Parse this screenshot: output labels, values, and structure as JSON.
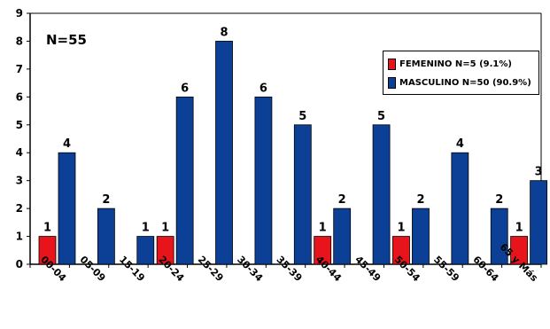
{
  "chart_data": {
    "type": "bar",
    "categories": [
      "00-04",
      "05-09",
      "15-19",
      "20-24",
      "25-29",
      "30-34",
      "35-39",
      "40-44",
      "45-49",
      "50-54",
      "55-59",
      "60-64",
      "65 y Más"
    ],
    "series": [
      {
        "name": "FEMENINO N=5 (9.1%)",
        "color": "#e8141b",
        "values": [
          1,
          0,
          0,
          1,
          0,
          0,
          0,
          1,
          0,
          1,
          0,
          0,
          1
        ]
      },
      {
        "name": "MASCULINO N=50 (90.9%)",
        "color": "#0c3f96",
        "values": [
          4,
          2,
          1,
          6,
          8,
          6,
          5,
          2,
          5,
          2,
          4,
          2,
          3
        ]
      }
    ],
    "yticks": [
      "0",
      "1",
      "2",
      "3",
      "4",
      "5",
      "6",
      "7",
      "8",
      "9"
    ],
    "ylim": [
      0,
      9
    ],
    "annotation": "N=55",
    "legend_position": "top-right",
    "grid": false
  }
}
